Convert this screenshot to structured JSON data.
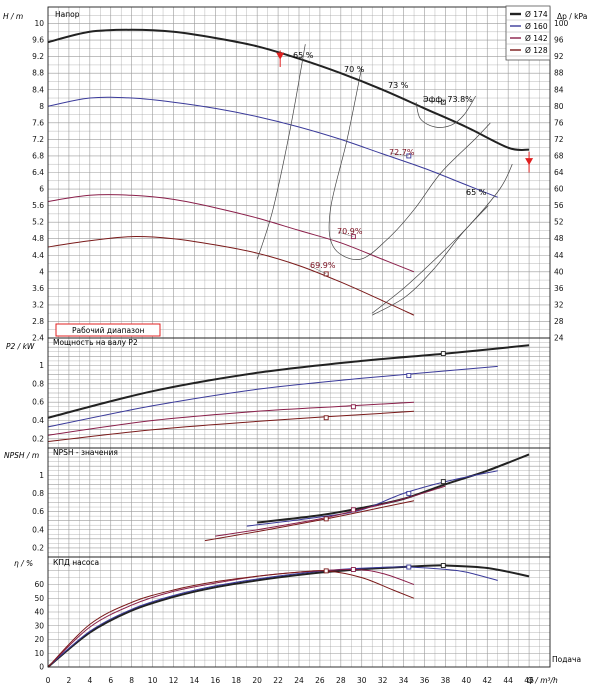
{
  "chart_data": [
    {
      "type": "line",
      "panel": "head",
      "title": "Напор",
      "ylabel": "H / m",
      "ylabel_right": "Δp / kPa",
      "ylim": [
        2.4,
        10.4
      ],
      "xlim": [
        0,
        48
      ],
      "yticks": [
        2.4,
        2.8,
        3.2,
        3.6,
        4,
        4.4,
        4.8,
        5.2,
        5.6,
        6,
        6.4,
        6.8,
        7.2,
        7.6,
        8,
        8.4,
        8.8,
        9.2,
        9.6,
        10
      ],
      "yticks_right": [
        24,
        28,
        32,
        36,
        40,
        44,
        48,
        52,
        56,
        60,
        64,
        68,
        72,
        76,
        80,
        84,
        88,
        92,
        96,
        100
      ],
      "legend_position": "top-right",
      "legend": [
        "Ø 174",
        "Ø 160",
        "Ø 142",
        "Ø 128"
      ],
      "range_label": "Рабочий диапазон",
      "series": [
        {
          "name": "Ø 174",
          "x": [
            0,
            4,
            8,
            12,
            16,
            20,
            24,
            28,
            32,
            36,
            40,
            44,
            46
          ],
          "y": [
            9.55,
            9.8,
            9.85,
            9.8,
            9.65,
            9.45,
            9.15,
            8.8,
            8.4,
            7.95,
            7.5,
            7.0,
            6.95
          ]
        },
        {
          "name": "Ø 160",
          "x": [
            0,
            4,
            8,
            12,
            16,
            20,
            24,
            28,
            32,
            36,
            40,
            43
          ],
          "y": [
            8.0,
            8.2,
            8.2,
            8.1,
            7.95,
            7.75,
            7.5,
            7.2,
            6.85,
            6.5,
            6.1,
            5.8
          ]
        },
        {
          "name": "Ø 142",
          "x": [
            0,
            4,
            8,
            12,
            16,
            20,
            24,
            28,
            32,
            35
          ],
          "y": [
            5.7,
            5.85,
            5.85,
            5.75,
            5.55,
            5.3,
            5.0,
            4.7,
            4.3,
            4.0
          ]
        },
        {
          "name": "Ø 128",
          "x": [
            0,
            4,
            8,
            12,
            16,
            20,
            24,
            28,
            32,
            35
          ],
          "y": [
            4.6,
            4.75,
            4.85,
            4.8,
            4.65,
            4.45,
            4.15,
            3.75,
            3.3,
            2.95
          ]
        }
      ],
      "points": [
        {
          "x": 37.8,
          "y": 8.1,
          "label": "Эфф. 73.8%"
        },
        {
          "x": 34.5,
          "y": 6.8,
          "label": "72.7%"
        },
        {
          "x": 29.2,
          "y": 4.85,
          "label": "70.9%"
        },
        {
          "x": 26.6,
          "y": 3.95,
          "label": "69.9%"
        }
      ],
      "iso_labels": [
        {
          "x": 24.6,
          "y": 9.5,
          "label": "65 %"
        },
        {
          "x": 29.8,
          "y": 9.05,
          "label": "70 %"
        },
        {
          "x": 34.6,
          "y": 8.25,
          "label": "73 %"
        },
        {
          "x": 42.1,
          "y": 5.65,
          "label": "65 %"
        }
      ]
    },
    {
      "type": "line",
      "panel": "power",
      "title": "Мощность на валу P2",
      "ylabel": "P2 / kW",
      "ylim": [
        0.1,
        1.3
      ],
      "yticks": [
        0.2,
        0.4,
        0.6,
        0.8,
        1
      ],
      "series": [
        {
          "name": "Ø 174",
          "x": [
            0,
            10,
            20,
            30,
            38,
            46
          ],
          "y": [
            0.43,
            0.72,
            0.92,
            1.05,
            1.13,
            1.22
          ]
        },
        {
          "name": "Ø 160",
          "x": [
            0,
            10,
            20,
            30,
            43
          ],
          "y": [
            0.33,
            0.56,
            0.74,
            0.86,
            0.99
          ]
        },
        {
          "name": "Ø 142",
          "x": [
            0,
            10,
            20,
            29,
            35
          ],
          "y": [
            0.24,
            0.4,
            0.5,
            0.56,
            0.6
          ]
        },
        {
          "name": "Ø 128",
          "x": [
            0,
            10,
            20,
            26.6,
            35
          ],
          "y": [
            0.17,
            0.3,
            0.39,
            0.44,
            0.5
          ]
        }
      ],
      "points": [
        {
          "x": 37.8,
          "y": 1.13
        },
        {
          "x": 34.5,
          "y": 0.89
        },
        {
          "x": 29.2,
          "y": 0.55
        },
        {
          "x": 26.6,
          "y": 0.43
        }
      ]
    },
    {
      "type": "line",
      "panel": "npsh",
      "title": "NPSH - значения",
      "ylabel": "NPSH / m",
      "ylim": [
        0.1,
        1.3
      ],
      "yticks": [
        0.2,
        0.4,
        0.6,
        0.8,
        1
      ],
      "series": [
        {
          "name": "Ø 174",
          "x": [
            20,
            26,
            30,
            34,
            38,
            42,
            46
          ],
          "y": [
            0.48,
            0.56,
            0.64,
            0.74,
            0.9,
            1.05,
            1.23
          ]
        },
        {
          "name": "Ø 160",
          "x": [
            19,
            26,
            30,
            34,
            38,
            43
          ],
          "y": [
            0.44,
            0.54,
            0.62,
            0.8,
            0.93,
            1.05
          ]
        },
        {
          "name": "Ø 142",
          "x": [
            16,
            20,
            26,
            29,
            34,
            38
          ],
          "y": [
            0.33,
            0.4,
            0.52,
            0.6,
            0.74,
            0.88
          ]
        },
        {
          "name": "Ø 128",
          "x": [
            15,
            20,
            26.6,
            30,
            35
          ],
          "y": [
            0.28,
            0.38,
            0.52,
            0.6,
            0.72
          ]
        }
      ],
      "points": [
        {
          "x": 37.8,
          "y": 0.93
        },
        {
          "x": 34.5,
          "y": 0.8
        },
        {
          "x": 29.2,
          "y": 0.62
        },
        {
          "x": 26.6,
          "y": 0.52
        }
      ]
    },
    {
      "type": "line",
      "panel": "efficiency",
      "title": "КПД насоса",
      "ylabel": "η / %",
      "xlabel": "Q / m³/h",
      "xlabel_note": "Подача",
      "ylim": [
        0,
        80
      ],
      "xlim": [
        0,
        48
      ],
      "yticks": [
        0,
        10,
        20,
        30,
        40,
        50,
        60
      ],
      "xticks": [
        0,
        2,
        4,
        6,
        8,
        10,
        12,
        14,
        16,
        18,
        20,
        22,
        24,
        26,
        28,
        30,
        32,
        34,
        36,
        38,
        40,
        42,
        44,
        46
      ],
      "series": [
        {
          "name": "Ø 174",
          "x": [
            0,
            4,
            8,
            12,
            16,
            20,
            24,
            28,
            32,
            36,
            38,
            42,
            46
          ],
          "y": [
            0,
            25,
            41,
            51,
            58,
            63,
            67,
            70,
            72,
            73.5,
            73.8,
            72,
            66
          ]
        },
        {
          "name": "Ø 160",
          "x": [
            0,
            4,
            8,
            12,
            16,
            20,
            24,
            28,
            32,
            34.5,
            38,
            40,
            43
          ],
          "y": [
            0,
            26,
            42,
            52,
            59,
            64,
            68,
            71,
            72.5,
            72.7,
            71,
            69,
            63
          ]
        },
        {
          "name": "Ø 142",
          "x": [
            0,
            4,
            8,
            12,
            16,
            20,
            24,
            29.2,
            32,
            35
          ],
          "y": [
            0,
            29,
            45,
            55,
            61,
            66,
            69,
            70.9,
            68,
            60
          ]
        },
        {
          "name": "Ø 128",
          "x": [
            0,
            4,
            8,
            12,
            16,
            20,
            24,
            26.6,
            30,
            33,
            35
          ],
          "y": [
            0,
            31,
            47,
            56,
            62,
            66,
            69,
            69.9,
            65,
            56,
            50
          ]
        }
      ],
      "points": [
        {
          "x": 37.8,
          "y": 73.8
        },
        {
          "x": 34.5,
          "y": 72.7
        },
        {
          "x": 29.2,
          "y": 70.9
        },
        {
          "x": 26.6,
          "y": 69.9
        }
      ]
    }
  ],
  "colors": {
    "s174": "#222222",
    "s160": "#3a3a9a",
    "s142": "#8a1f4a",
    "s128": "#7a1a1a",
    "accent": "#e02020",
    "grid": "#9a9a9a"
  }
}
